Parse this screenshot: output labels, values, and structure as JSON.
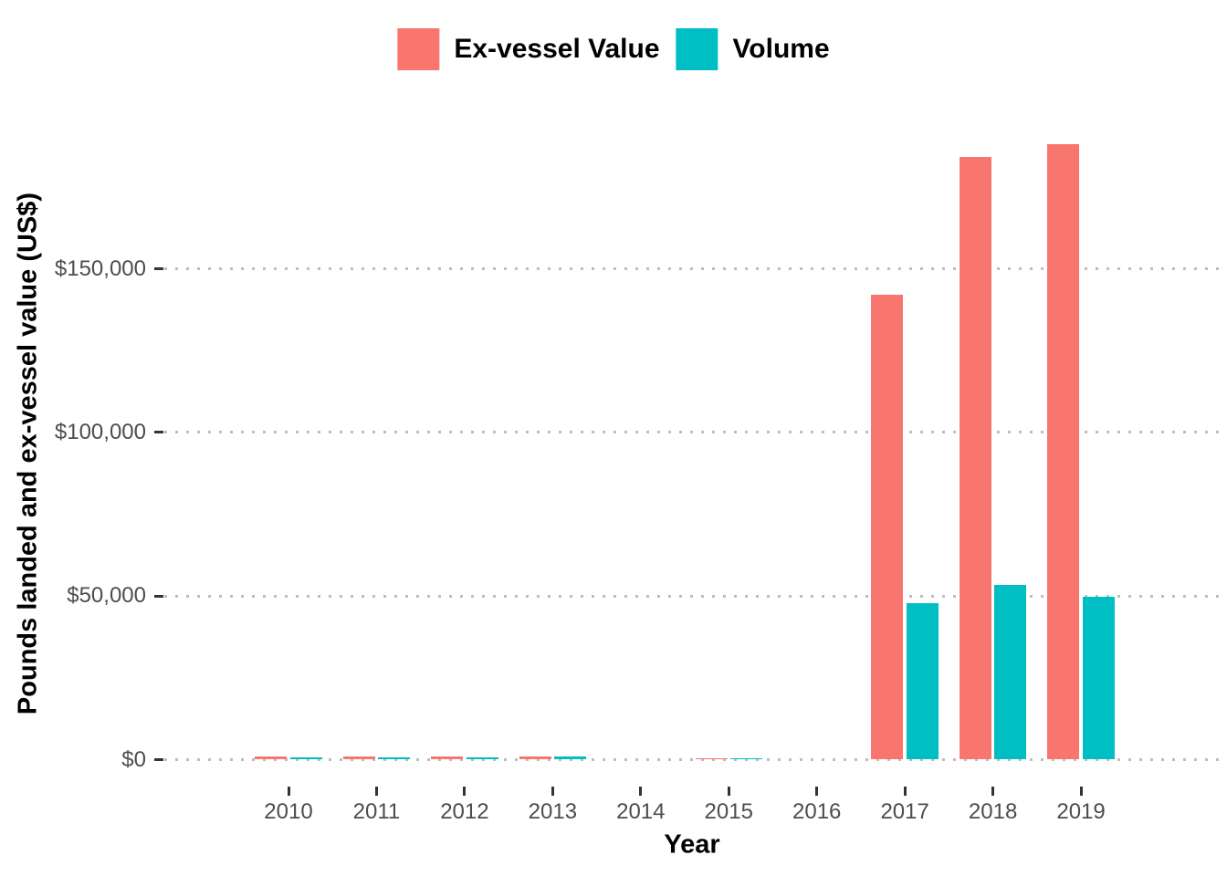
{
  "chart_data": {
    "type": "bar",
    "title": "",
    "xlabel": "Year",
    "ylabel": "Pounds landed and ex-vessel value (US$)",
    "categories": [
      "2010",
      "2011",
      "2012",
      "2013",
      "2014",
      "2015",
      "2016",
      "2017",
      "2018",
      "2019"
    ],
    "series": [
      {
        "name": "Ex-vessel Value",
        "color": "#F8766D",
        "values": [
          950,
          900,
          900,
          1000,
          0,
          550,
          0,
          142000,
          184200,
          188100
        ]
      },
      {
        "name": "Volume",
        "color": "#00BFC4",
        "values": [
          700,
          700,
          750,
          850,
          0,
          400,
          0,
          47700,
          53300,
          49900
        ]
      }
    ],
    "y_ticks": [
      {
        "value": 0,
        "label": "$0"
      },
      {
        "value": 50000,
        "label": "$50,000"
      },
      {
        "value": 100000,
        "label": "$100,000"
      },
      {
        "value": 150000,
        "label": "$150,000"
      }
    ],
    "ylim": [
      0,
      197000
    ],
    "grid": "horizontal-major-dotted",
    "legend_position": "top-center"
  },
  "colors": {
    "background": "#ffffff",
    "gridline": "#bdbdbd",
    "tick_mark": "#333333",
    "tick_label": "#4d4d4d",
    "axis_title": "#000000"
  }
}
